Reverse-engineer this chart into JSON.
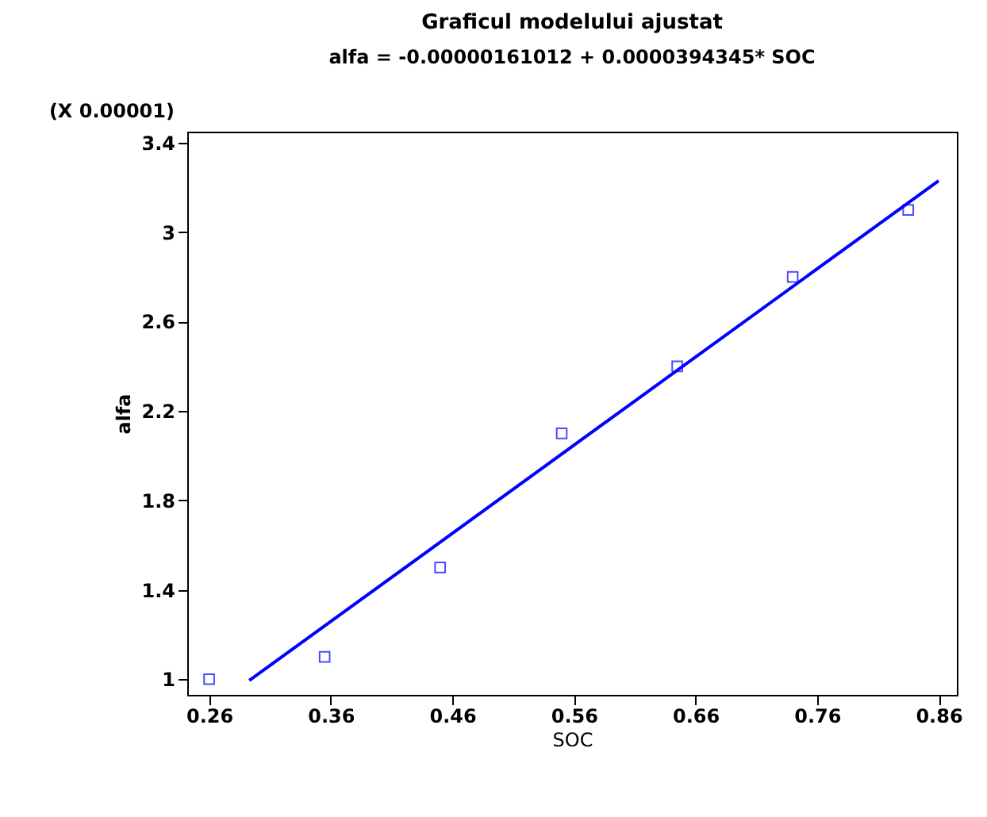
{
  "chart_data": {
    "type": "scatter",
    "title": "Graficul modelului ajustat",
    "subtitle": "alfa = -0.00000161012 + 0.0000394345* SOC",
    "xlabel": "SOC",
    "ylabel": "alfa",
    "annotations": [
      "(X 0.00001)"
    ],
    "x": [
      0.26,
      0.355,
      0.45,
      0.55,
      0.645,
      0.74,
      0.835
    ],
    "series": [
      {
        "color": "#0000ff",
        "marker": "square",
        "values": [
          1.0,
          1.1,
          1.5,
          2.1,
          2.4,
          2.8,
          3.1
        ]
      },
      {
        "type": "line",
        "color": "#0000ff",
        "line_style": "solid",
        "x": [
          0.293,
          0.86
        ],
        "values": [
          0.994,
          3.23
        ]
      }
    ],
    "xlim": [
      0.242,
      0.875
    ],
    "ylim": [
      0.93,
      3.45
    ],
    "xticks": [
      0.26,
      0.36,
      0.46,
      0.56,
      0.66,
      0.76,
      0.86
    ],
    "yticks": [
      1,
      1.4,
      1.8,
      2.2,
      2.6,
      3,
      3.4
    ],
    "grid": false
  }
}
